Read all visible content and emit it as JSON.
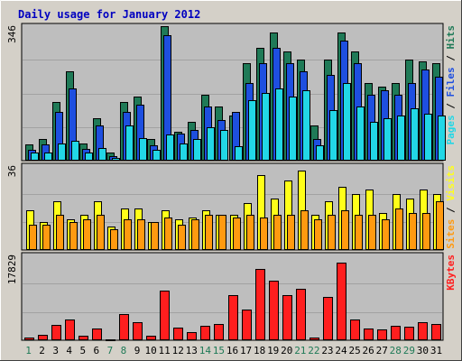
{
  "chart_data": {
    "type": "bar",
    "title": "Daily usage for January 2012",
    "days": [
      "1",
      "2",
      "3",
      "4",
      "5",
      "6",
      "7",
      "8",
      "9",
      "10",
      "11",
      "12",
      "13",
      "14",
      "15",
      "16",
      "17",
      "18",
      "19",
      "20",
      "21",
      "22",
      "23",
      "24",
      "25",
      "26",
      "27",
      "28",
      "29",
      "30",
      "31"
    ],
    "weekend_days": [
      "1",
      "7",
      "8",
      "14",
      "15",
      "21",
      "22",
      "28",
      "29"
    ],
    "panels": [
      {
        "name": "hits-files-pages",
        "max_label": "346",
        "ymax": 346,
        "series": [
          {
            "name": "Hits",
            "color": "#1f7a57",
            "values": [
              42,
              55,
              150,
              230,
              45,
              110,
              20,
              150,
              165,
              55,
              346,
              75,
              100,
              170,
              140,
              115,
              250,
              290,
              330,
              280,
              260,
              90,
              260,
              330,
              280,
              200,
              190,
              200,
              260,
              255,
              250
            ]
          },
          {
            "name": "Files",
            "color": "#1e4fe0",
            "values": [
              28,
              42,
              125,
              185,
              30,
              90,
              12,
              125,
              145,
              40,
              322,
              70,
              80,
              140,
              105,
              125,
              200,
              250,
              290,
              250,
              230,
              55,
              220,
              310,
              250,
              170,
              180,
              170,
              200,
              235,
              215
            ]
          },
          {
            "name": "Pages",
            "color": "#22d7e6",
            "values": [
              22,
              20,
              45,
              50,
              20,
              32,
              8,
              90,
              58,
              28,
              68,
              45,
              55,
              85,
              80,
              38,
              155,
              175,
              185,
              165,
              180,
              40,
              130,
              200,
              140,
              100,
              110,
              115,
              135,
              120,
              115
            ]
          }
        ]
      },
      {
        "name": "visits-sites",
        "max_label": "36",
        "ymax": 36,
        "series": [
          {
            "name": "Visits",
            "color": "#ffff19",
            "values": [
              17,
              12,
              21,
              13,
              15,
              21,
              10,
              18,
              18,
              12,
              17,
              13,
              14,
              17,
              15,
              15,
              20,
              32,
              22,
              30,
              34,
              15,
              21,
              27,
              24,
              26,
              16,
              24,
              22,
              26,
              24
            ]
          },
          {
            "name": "Sites",
            "color": "#ff9a10",
            "values": [
              11,
              11,
              15,
              12,
              13,
              15,
              9,
              13,
              13,
              12,
              14,
              11,
              13,
              15,
              15,
              14,
              15,
              14,
              15,
              15,
              17,
              13,
              15,
              17,
              15,
              15,
              13,
              18,
              16,
              16,
              21
            ]
          }
        ]
      },
      {
        "name": "kbytes",
        "max_label": "17829",
        "ymax": 17829,
        "series": [
          {
            "name": "KBytes",
            "color": "#ff1e1e",
            "values": [
              500,
              1200,
              3200,
              4400,
              1000,
              2400,
              150,
              5500,
              3800,
              900,
              10400,
              2600,
              1700,
              3100,
              3400,
              9500,
              6400,
              15000,
              12500,
              9500,
              10800,
              600,
              9100,
              16400,
              4300,
              2400,
              2300,
              3000,
              2900,
              3700,
              3400
            ]
          }
        ]
      }
    ],
    "legend": {
      "top": [
        {
          "text": "Pages",
          "color": "#22d7e6"
        },
        {
          "text": " / ",
          "color": "#000000"
        },
        {
          "text": "Files",
          "color": "#1e4fe0"
        },
        {
          "text": " / ",
          "color": "#000000"
        },
        {
          "text": "Hits",
          "color": "#1f7a57"
        }
      ],
      "middle": [
        {
          "text": "Sites",
          "color": "#ff9a10"
        },
        {
          "text": " / ",
          "color": "#000000"
        },
        {
          "text": "Visits",
          "color": "#ffff19"
        }
      ],
      "bottom": [
        {
          "text": "KBytes",
          "color": "#ff1e1e"
        }
      ]
    },
    "colors": {
      "title": "#0000c0",
      "weekday_label": "#000000",
      "weekend_label": "#1f7a57",
      "panel_bg": "#bebebe",
      "frame_bg": "#d4d0c8",
      "gridline": "#a2a2a2"
    }
  }
}
